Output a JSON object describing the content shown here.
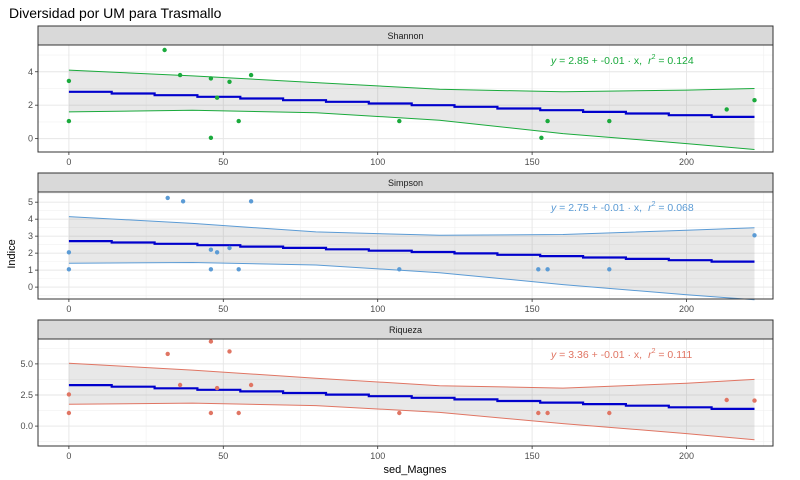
{
  "chart_data": {
    "type": "scatter",
    "title": "Diversidad por UM para Trasmallo",
    "xlabel": "sed_Magnes",
    "ylabel": "Indice",
    "xlim": [
      -10,
      228
    ],
    "x_ticks": [
      0,
      50,
      100,
      150,
      200
    ],
    "grid": true,
    "facets": [
      {
        "name": "Shannon",
        "color": "#1aaa3c",
        "ylim": [
          -0.8,
          5.6
        ],
        "y_ticks": [
          0,
          2,
          4
        ],
        "y_tick_labels": [
          "0",
          "2",
          "4"
        ],
        "equation": {
          "y": "y",
          "eq": " = 2.85 + -0.01 · x,",
          "r": "r",
          "two": "2",
          "val": " = 0.124"
        },
        "fit": {
          "intercept": 2.85,
          "slope": -0.0072
        },
        "ci": {
          "x": [
            0,
            40,
            80,
            120,
            160,
            200,
            222
          ],
          "upper": [
            4.1,
            3.75,
            3.35,
            2.95,
            2.8,
            2.9,
            3.0
          ],
          "lower": [
            1.6,
            1.7,
            1.55,
            1.1,
            0.3,
            -0.3,
            -0.65
          ]
        },
        "points": {
          "x": [
            0,
            0,
            31,
            36,
            46,
            46,
            48,
            52,
            55,
            59,
            107,
            153,
            155,
            175,
            213,
            222
          ],
          "y": [
            3.45,
            1.05,
            5.3,
            3.8,
            3.6,
            0.05,
            2.45,
            3.4,
            1.05,
            3.8,
            1.05,
            0.05,
            1.05,
            1.05,
            1.75,
            2.3
          ]
        }
      },
      {
        "name": "Simpson",
        "color": "#5b9bd5",
        "ylim": [
          -0.7,
          5.6
        ],
        "y_ticks": [
          0,
          1,
          2,
          3,
          4,
          5
        ],
        "y_tick_labels": [
          "0",
          "1",
          "2",
          "3",
          "4",
          "5"
        ],
        "equation": {
          "y": "y",
          "eq": " = 2.75 + -0.01 · x,",
          "r": "r",
          "two": "2",
          "val": " = 0.068"
        },
        "fit": {
          "intercept": 2.75,
          "slope": -0.0058
        },
        "ci": {
          "x": [
            0,
            40,
            80,
            120,
            160,
            200,
            222
          ],
          "upper": [
            4.15,
            3.75,
            3.25,
            3.05,
            3.1,
            3.35,
            3.5
          ],
          "lower": [
            1.4,
            1.45,
            1.3,
            0.85,
            0.15,
            -0.45,
            -0.75
          ]
        },
        "points": {
          "x": [
            0,
            0,
            32,
            37,
            46,
            46,
            48,
            52,
            55,
            59,
            107,
            152,
            155,
            175,
            222
          ],
          "y": [
            2.05,
            1.05,
            5.25,
            5.05,
            1.05,
            2.2,
            2.05,
            2.3,
            1.05,
            5.05,
            1.05,
            1.05,
            1.05,
            1.05,
            3.05
          ]
        }
      },
      {
        "name": "Riqueza",
        "color": "#e07563",
        "ylim": [
          -1.6,
          7.0
        ],
        "y_ticks": [
          0,
          2.5,
          5
        ],
        "y_tick_labels": [
          "0.0",
          "2.5",
          "5.0"
        ],
        "equation": {
          "y": "y",
          "eq": " = 3.36 + -0.01 · x,",
          "r": "r",
          "two": "2",
          "val": " = 0.111"
        },
        "fit": {
          "intercept": 3.36,
          "slope": -0.0092
        },
        "ci": {
          "x": [
            0,
            40,
            80,
            120,
            160,
            200,
            222
          ],
          "upper": [
            5.05,
            4.5,
            3.85,
            3.25,
            3.05,
            3.45,
            3.75
          ],
          "lower": [
            1.75,
            1.85,
            1.65,
            1.1,
            0.2,
            -0.6,
            -1.1
          ]
        },
        "points": {
          "x": [
            0,
            0,
            32,
            36,
            46,
            46,
            48,
            52,
            55,
            59,
            107,
            152,
            155,
            175,
            213,
            222
          ],
          "y": [
            2.55,
            1.05,
            5.8,
            3.3,
            6.8,
            1.05,
            3.05,
            6.0,
            1.05,
            3.3,
            1.05,
            1.05,
            1.05,
            1.05,
            2.1,
            2.05
          ]
        }
      }
    ]
  }
}
